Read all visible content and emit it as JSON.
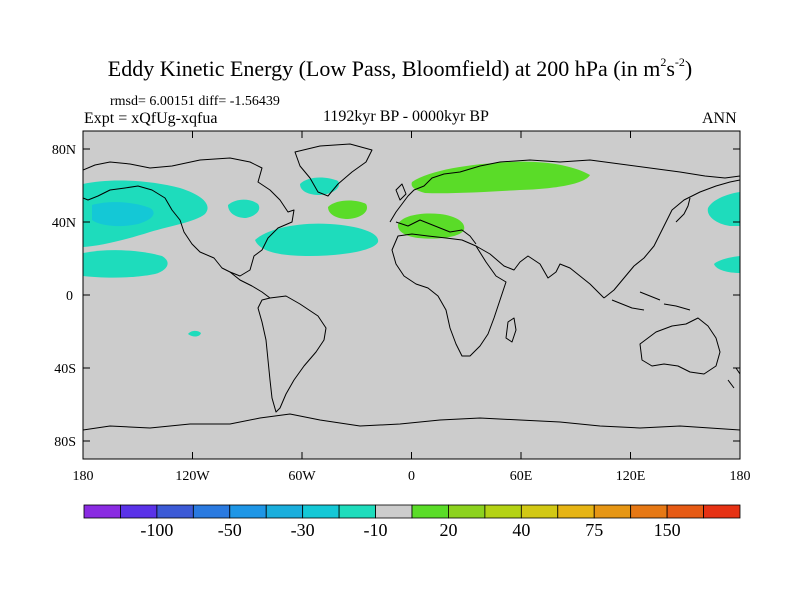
{
  "title": {
    "main": "Eddy Kinetic Energy (Low Pass, Bloomfield) at 200 hPa (in m",
    "sup1": "2",
    "mid": "s",
    "sup2": "-2",
    "end": ")"
  },
  "stats": "rmsd= 6.00151 diff= -1.56439",
  "experiment": "Expt = xQfUg-xqfua",
  "period": "1192kyr BP - 0000kyr BP",
  "season": "ANN",
  "map": {
    "background_color": "#cccccc",
    "lat_ticks": [
      "80N",
      "40N",
      "0",
      "40S",
      "80S"
    ],
    "lon_ticks": [
      "180",
      "120W",
      "60W",
      "0",
      "60E",
      "120E",
      "180"
    ]
  },
  "colorbar": {
    "colors": [
      "#8a2be2",
      "#5a32e8",
      "#3c5ad6",
      "#2a7ae0",
      "#1e96e6",
      "#1aaedc",
      "#14c8d6",
      "#1edcbc",
      "#cccccc",
      "#5adc28",
      "#8cd21e",
      "#b4d214",
      "#d2c814",
      "#e6b414",
      "#e69614",
      "#e67814",
      "#e65a14",
      "#e63214"
    ],
    "labels": [
      "-100",
      "-50",
      "-30",
      "-10",
      "20",
      "40",
      "75",
      "150"
    ]
  },
  "anomaly_regions": [
    {
      "sign": "negative",
      "color": "#1edcbc",
      "region": "North Pacific"
    },
    {
      "sign": "negative",
      "color": "#14c8d6",
      "region": "North Pacific core"
    },
    {
      "sign": "negative",
      "color": "#1edcbc",
      "region": "Subtropical North Pacific"
    },
    {
      "sign": "negative",
      "color": "#1edcbc",
      "region": "North Atlantic"
    },
    {
      "sign": "negative",
      "color": "#1edcbc",
      "region": "Labrador / Greenland"
    },
    {
      "sign": "negative",
      "color": "#1edcbc",
      "region": "Western North Pacific"
    },
    {
      "sign": "positive",
      "color": "#5adc28",
      "region": "Northern Europe / Siberia"
    },
    {
      "sign": "positive",
      "color": "#5adc28",
      "region": "Mediterranean"
    },
    {
      "sign": "positive",
      "color": "#5adc28",
      "region": "Central North Atlantic"
    }
  ]
}
